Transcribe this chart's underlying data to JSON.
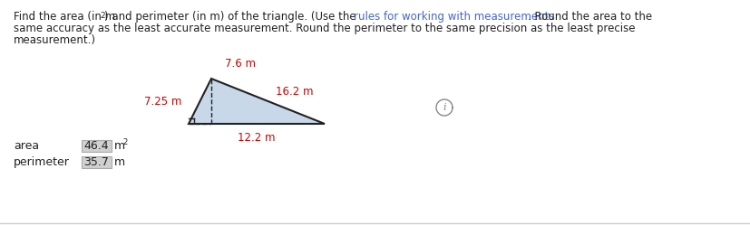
{
  "title_line1_before_link": "Find the area (in m",
  "title_line1_link": "rules for working with measurements",
  "title_line1_after_link": ". Round the area to the",
  "title_line1_mid": ") and perimeter (in m) of the triangle. (Use the ",
  "title_line2": "same accuracy as the least accurate measurement. Round the perimeter to the same precision as the least precise",
  "title_line3": "measurement.)",
  "side_labels": [
    "7.25 m",
    "7.6 m",
    "16.2 m",
    "12.2 m"
  ],
  "side_label_color": "#cc0000",
  "triangle_fill": "#c8d8e8",
  "triangle_edge": "#222222",
  "area_label": "area",
  "area_value": "46.4",
  "area_unit": "m2",
  "perimeter_label": "perimeter",
  "perimeter_value": "35.7",
  "perimeter_unit": "m",
  "box_bg": "#d0d0d0",
  "box_border": "#aaaaaa",
  "text_color": "#222222",
  "link_color": "#4466cc",
  "background": "#ffffff",
  "bottom_border_color": "#cccccc"
}
